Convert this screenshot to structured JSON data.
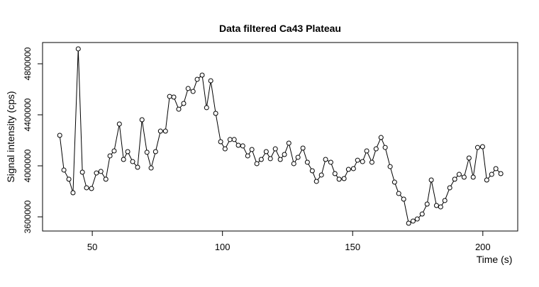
{
  "chart_data": {
    "type": "line",
    "title": "Data filtered Ca43 Plateau",
    "x_label": "Time (s)",
    "y_label": "Signal intensity (cps)",
    "x": [
      37.5,
      39.1,
      41.0,
      42.6,
      44.6,
      46.2,
      47.8,
      49.7,
      51.6,
      53.3,
      55.2,
      56.8,
      58.4,
      60.4,
      62.0,
      63.6,
      65.5,
      67.4,
      69.1,
      71.0,
      72.6,
      74.3,
      76.2,
      78.1,
      79.7,
      81.3,
      83.2,
      85.1,
      86.8,
      88.7,
      90.3,
      92.2,
      93.9,
      95.5,
      97.4,
      99.3,
      101.0,
      102.9,
      104.5,
      106.1,
      107.8,
      109.7,
      111.3,
      113.2,
      114.9,
      116.8,
      118.4,
      120.3,
      122.2,
      123.8,
      125.5,
      127.4,
      129.0,
      130.9,
      132.6,
      134.5,
      136.1,
      138.0,
      139.6,
      141.6,
      143.2,
      144.8,
      146.7,
      148.4,
      150.3,
      151.9,
      153.8,
      155.4,
      157.4,
      159.0,
      160.9,
      162.5,
      164.4,
      166.1,
      167.7,
      169.6,
      171.5,
      173.2,
      174.8,
      176.7,
      178.6,
      180.2,
      182.2,
      183.8,
      185.4,
      187.3,
      189.2,
      190.9,
      192.8,
      194.7,
      196.3,
      198.0,
      199.9,
      201.5,
      203.4,
      205.0,
      206.9
    ],
    "values": [
      4239000,
      3967000,
      3895000,
      3789000,
      4917000,
      3950000,
      3828000,
      3822000,
      3944000,
      3956000,
      3895000,
      4078000,
      4117000,
      4328000,
      4050000,
      4111000,
      4033000,
      3989000,
      4361000,
      4106000,
      3983000,
      4111000,
      4272000,
      4272000,
      4544000,
      4539000,
      4444000,
      4489000,
      4606000,
      4583000,
      4678000,
      4711000,
      4456000,
      4667000,
      4411000,
      4189000,
      4133000,
      4206000,
      4206000,
      4161000,
      4156000,
      4078000,
      4128000,
      4017000,
      4050000,
      4111000,
      4056000,
      4133000,
      4050000,
      4089000,
      4178000,
      4017000,
      4067000,
      4139000,
      4028000,
      3961000,
      3878000,
      3928000,
      4050000,
      4028000,
      3939000,
      3895000,
      3900000,
      3972000,
      3978000,
      4044000,
      4033000,
      4117000,
      4028000,
      4133000,
      4222000,
      4144000,
      3994000,
      3872000,
      3783000,
      3739000,
      3550000,
      3567000,
      3583000,
      3622000,
      3700000,
      3889000,
      3689000,
      3678000,
      3728000,
      3828000,
      3895000,
      3933000,
      3911000,
      4061000,
      3911000,
      4144000,
      4150000,
      3889000,
      3933000,
      3978000,
      3939000
    ],
    "xlim": [
      30.9,
      213.4
    ],
    "ylim": [
      3488889,
      4966667
    ],
    "xticks": [
      50,
      100,
      150,
      200
    ],
    "yticks": [
      3600000,
      4000000,
      4400000,
      4800000
    ],
    "color": "#000000"
  }
}
